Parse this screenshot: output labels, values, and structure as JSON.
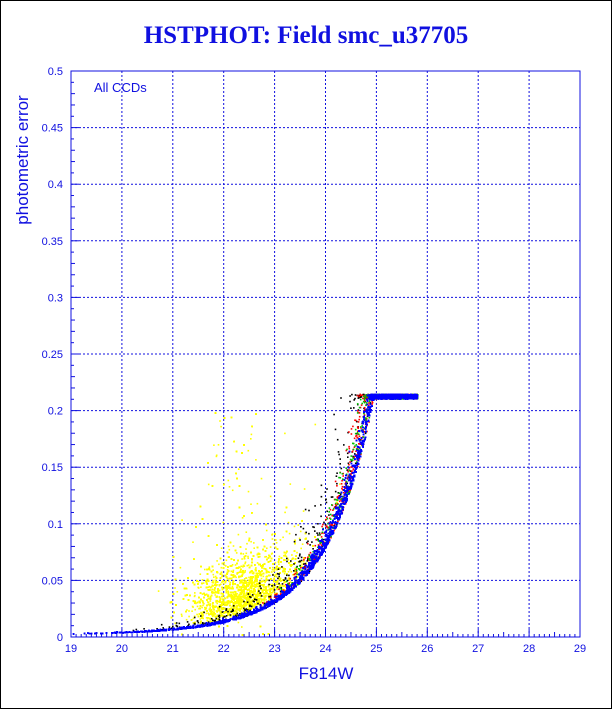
{
  "chart_data": {
    "type": "scatter",
    "title": "HSTPHOT: Field smc_u37705",
    "xlabel": "F814W",
    "ylabel": "photometric error",
    "annotation": "All CCDs",
    "xlim": [
      19,
      29
    ],
    "ylim": [
      0,
      0.5
    ],
    "x_ticks": [
      "19",
      "20",
      "21",
      "22",
      "23",
      "24",
      "25",
      "26",
      "27",
      "28",
      "29"
    ],
    "y_ticks": [
      "0",
      "0.05",
      "0.1",
      "0.15",
      "0.2",
      "0.25",
      "0.3",
      "0.35",
      "0.4",
      "0.45",
      "0.5"
    ],
    "grid": true,
    "error_cap": 0.215,
    "series": [
      {
        "color": "#ffff00",
        "x_range": [
          19.5,
          26.0
        ],
        "points": 9000,
        "spread": "wide"
      },
      {
        "color": "#000000",
        "x_range": [
          20.2,
          25.6
        ],
        "points": 500,
        "spread": "medium"
      },
      {
        "color": "#ff0000",
        "x_range": [
          22.5,
          25.8
        ],
        "points": 700,
        "spread": "narrow"
      },
      {
        "color": "#00c000",
        "x_range": [
          23.0,
          25.8
        ],
        "points": 500,
        "spread": "narrow"
      },
      {
        "color": "#0000ff",
        "x_range": [
          19.0,
          25.8
        ],
        "points": 12000,
        "spread": "ridge"
      }
    ]
  }
}
